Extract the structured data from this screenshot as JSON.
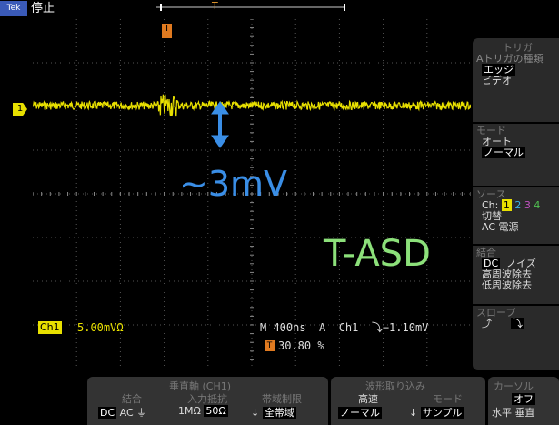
{
  "top_bar": {
    "logo": "Tek",
    "run_state": "停止",
    "trigger_position_marker": "T"
  },
  "screen": {
    "trigger_marker": "T",
    "ch1_ground_marker": "1",
    "amplitude_annotation": "~3mV",
    "name_annotation": "T-ASD",
    "colors": {
      "trace": "#e8e000",
      "amplitude_annotation": "#3a8ee6",
      "name_annotation": "#8ce07a",
      "trigger": "#e07a20"
    }
  },
  "readouts": {
    "ch1_badge": "Ch1",
    "ch1_scale": "5.00mVΩ",
    "timebase": "M 400ns  A  Ch1  ⤵−1.10mV",
    "trigger_position_icon": "T",
    "trigger_position": "30.80 %"
  },
  "side_menu": {
    "trigger": {
      "title": "トリガ",
      "type_label": "Aトリガの種類",
      "edge": "エッジ",
      "video": "ビデオ"
    },
    "mode": {
      "title": "モード",
      "auto": "オート",
      "normal": "ノーマル"
    },
    "source": {
      "title": "ソース",
      "ch_label": "Ch:",
      "ch1": "1",
      "ch2": "2",
      "ch3": "3",
      "ch4": "4",
      "switch": "切替",
      "ac_line": "AC 電源"
    },
    "coupling": {
      "title": "結合",
      "dc": "DC",
      "noise": "ノイズ",
      "hf_reject": "高周波除去",
      "lf_reject": "低周波除去"
    },
    "slope": {
      "title": "スロープ",
      "rise": "⤴",
      "fall": "⤵"
    }
  },
  "bottom_menu": {
    "vertical": {
      "header": "垂直軸 (CH1)",
      "coupling_label": "結合",
      "dc": "DC",
      "ac": "AC",
      "gnd": "⏚",
      "impedance_label": "入力抵抗",
      "imp_1m": "1MΩ",
      "imp_50": "50Ω",
      "bandwidth_label": "帯域制限",
      "bw_value": "全帯域",
      "arrow": "↓"
    },
    "acquisition": {
      "header": "波形取り込み",
      "speed_label": "高速",
      "speed_value": "ノーマル",
      "mode_label": "モード",
      "mode_value": "サンプル",
      "arrow": "↓"
    },
    "cursor": {
      "header": "カーソル",
      "off": "オフ",
      "horizontal": "水平",
      "vertical": "垂直"
    }
  }
}
